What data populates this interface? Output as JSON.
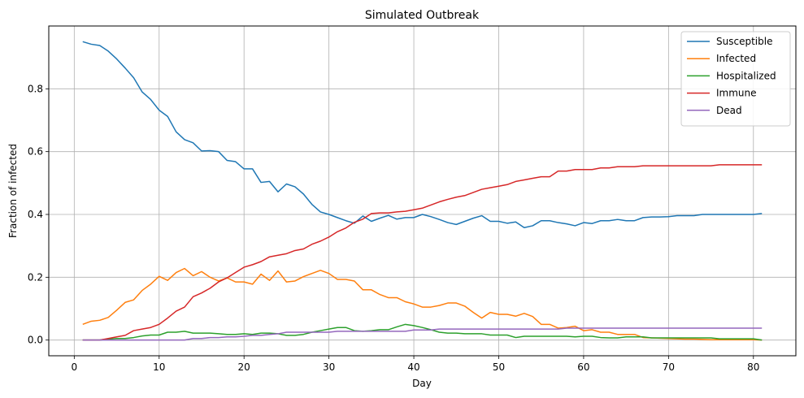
{
  "chart_data": {
    "type": "line",
    "title": "Simulated Outbreak",
    "xlabel": "Day",
    "ylabel": "Fraction of infected",
    "xlim": [
      -3,
      85
    ],
    "ylim": [
      -0.05,
      1.0
    ],
    "xticks": [
      0,
      10,
      20,
      30,
      40,
      50,
      60,
      70,
      80
    ],
    "yticks": [
      0.0,
      0.2,
      0.4,
      0.6,
      0.8
    ],
    "ytick_labels": [
      "0.0",
      "0.2",
      "0.4",
      "0.6",
      "0.8"
    ],
    "grid": true,
    "legend_position": "top-right",
    "x": [
      1,
      2,
      3,
      4,
      5,
      6,
      7,
      8,
      9,
      10,
      11,
      12,
      13,
      14,
      15,
      16,
      17,
      18,
      19,
      20,
      21,
      22,
      23,
      24,
      25,
      26,
      27,
      28,
      29,
      30,
      31,
      32,
      33,
      34,
      35,
      36,
      37,
      38,
      39,
      40,
      41,
      42,
      43,
      44,
      45,
      46,
      47,
      48,
      49,
      50,
      51,
      52,
      53,
      54,
      55,
      56,
      57,
      58,
      59,
      60,
      61,
      62,
      63,
      64,
      65,
      66,
      67,
      68,
      69,
      70,
      71,
      72,
      73,
      74,
      75,
      76,
      77,
      78,
      79,
      80,
      81
    ],
    "series": [
      {
        "name": "Susceptible",
        "color": "#1f77b4",
        "values": [
          0.95,
          0.942,
          0.938,
          0.92,
          0.895,
          0.866,
          0.835,
          0.79,
          0.766,
          0.732,
          0.712,
          0.663,
          0.638,
          0.628,
          0.602,
          0.603,
          0.6,
          0.572,
          0.568,
          0.545,
          0.545,
          0.502,
          0.505,
          0.472,
          0.497,
          0.488,
          0.465,
          0.432,
          0.408,
          0.4,
          0.39,
          0.38,
          0.372,
          0.395,
          0.378,
          0.388,
          0.397,
          0.385,
          0.39,
          0.39,
          0.4,
          0.393,
          0.384,
          0.374,
          0.368,
          0.378,
          0.388,
          0.396,
          0.378,
          0.378,
          0.372,
          0.376,
          0.358,
          0.364,
          0.38,
          0.38,
          0.374,
          0.37,
          0.364,
          0.374,
          0.371,
          0.38,
          0.38,
          0.384,
          0.38,
          0.38,
          0.39,
          0.392,
          0.392,
          0.393,
          0.396,
          0.396,
          0.396,
          0.4,
          0.4,
          0.4,
          0.4,
          0.4,
          0.4,
          0.4,
          0.403
        ]
      },
      {
        "name": "Infected",
        "color": "#ff7f0e",
        "values": [
          0.05,
          0.06,
          0.063,
          0.072,
          0.095,
          0.12,
          0.128,
          0.158,
          0.178,
          0.203,
          0.19,
          0.215,
          0.228,
          0.205,
          0.218,
          0.2,
          0.188,
          0.198,
          0.185,
          0.185,
          0.178,
          0.21,
          0.19,
          0.22,
          0.185,
          0.188,
          0.202,
          0.212,
          0.222,
          0.212,
          0.193,
          0.193,
          0.188,
          0.16,
          0.16,
          0.145,
          0.135,
          0.135,
          0.122,
          0.115,
          0.105,
          0.105,
          0.11,
          0.118,
          0.118,
          0.108,
          0.088,
          0.07,
          0.088,
          0.082,
          0.082,
          0.076,
          0.085,
          0.075,
          0.05,
          0.05,
          0.038,
          0.04,
          0.044,
          0.03,
          0.033,
          0.025,
          0.025,
          0.018,
          0.018,
          0.018,
          0.008,
          0.007,
          0.006,
          0.005,
          0.004,
          0.003,
          0.003,
          0.002,
          0.001,
          0.001,
          0.001,
          0.001,
          0.001,
          0.001,
          0.0
        ]
      },
      {
        "name": "Hospitalized",
        "color": "#2ca02c",
        "values": [
          0.0,
          0.0,
          0.0,
          0.003,
          0.005,
          0.005,
          0.008,
          0.013,
          0.016,
          0.016,
          0.025,
          0.025,
          0.028,
          0.022,
          0.022,
          0.022,
          0.02,
          0.018,
          0.018,
          0.02,
          0.018,
          0.022,
          0.022,
          0.02,
          0.015,
          0.015,
          0.018,
          0.025,
          0.03,
          0.035,
          0.04,
          0.04,
          0.03,
          0.028,
          0.03,
          0.033,
          0.033,
          0.042,
          0.05,
          0.046,
          0.04,
          0.033,
          0.025,
          0.022,
          0.022,
          0.02,
          0.02,
          0.02,
          0.016,
          0.016,
          0.016,
          0.008,
          0.012,
          0.012,
          0.012,
          0.012,
          0.012,
          0.012,
          0.01,
          0.012,
          0.012,
          0.008,
          0.007,
          0.007,
          0.01,
          0.01,
          0.01,
          0.007,
          0.007,
          0.007,
          0.007,
          0.007,
          0.007,
          0.007,
          0.007,
          0.004,
          0.004,
          0.004,
          0.004,
          0.004,
          0.0
        ]
      },
      {
        "name": "Immune",
        "color": "#d62728",
        "values": [
          0.0,
          0.0,
          0.0,
          0.005,
          0.01,
          0.015,
          0.03,
          0.035,
          0.04,
          0.05,
          0.07,
          0.092,
          0.105,
          0.138,
          0.15,
          0.165,
          0.185,
          0.198,
          0.215,
          0.232,
          0.24,
          0.25,
          0.265,
          0.27,
          0.275,
          0.285,
          0.29,
          0.305,
          0.315,
          0.328,
          0.345,
          0.357,
          0.375,
          0.385,
          0.403,
          0.405,
          0.405,
          0.408,
          0.41,
          0.415,
          0.42,
          0.43,
          0.44,
          0.448,
          0.455,
          0.46,
          0.47,
          0.48,
          0.485,
          0.49,
          0.495,
          0.505,
          0.51,
          0.515,
          0.52,
          0.52,
          0.538,
          0.538,
          0.543,
          0.543,
          0.543,
          0.548,
          0.548,
          0.552,
          0.552,
          0.552,
          0.555,
          0.555,
          0.555,
          0.555,
          0.555,
          0.555,
          0.555,
          0.555,
          0.555,
          0.558,
          0.558,
          0.558,
          0.558,
          0.558,
          0.558
        ]
      },
      {
        "name": "Dead",
        "color": "#9467bd",
        "values": [
          0.0,
          0.0,
          0.0,
          0.0,
          0.0,
          0.0,
          0.0,
          0.0,
          0.0,
          0.0,
          0.0,
          0.0,
          0.0,
          0.005,
          0.005,
          0.008,
          0.008,
          0.01,
          0.01,
          0.012,
          0.015,
          0.015,
          0.018,
          0.02,
          0.025,
          0.025,
          0.025,
          0.025,
          0.025,
          0.025,
          0.028,
          0.028,
          0.028,
          0.028,
          0.028,
          0.028,
          0.028,
          0.028,
          0.028,
          0.032,
          0.032,
          0.032,
          0.035,
          0.035,
          0.035,
          0.035,
          0.035,
          0.035,
          0.035,
          0.035,
          0.035,
          0.035,
          0.035,
          0.035,
          0.035,
          0.035,
          0.035,
          0.038,
          0.038,
          0.038,
          0.038,
          0.038,
          0.038,
          0.038,
          0.038,
          0.038,
          0.038,
          0.038,
          0.038,
          0.038,
          0.038,
          0.038,
          0.038,
          0.038,
          0.038,
          0.038,
          0.038,
          0.038,
          0.038,
          0.038,
          0.038
        ]
      }
    ]
  }
}
